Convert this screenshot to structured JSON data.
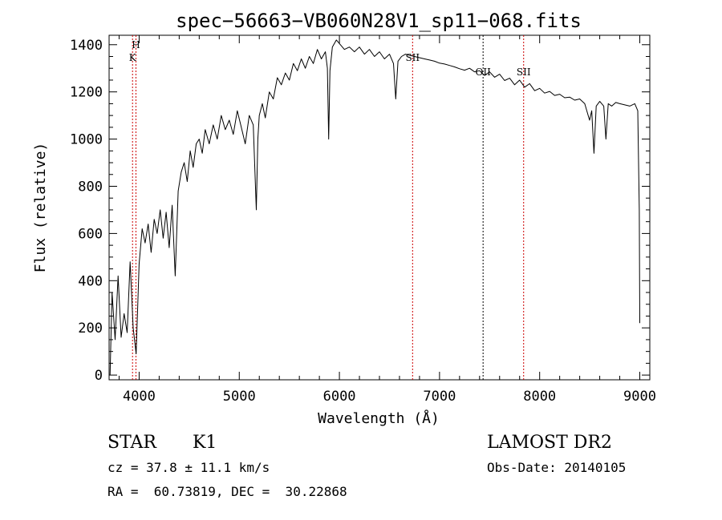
{
  "chart_data": {
    "type": "line",
    "title": "spec−56663−VB060N28V1_sp11−068.fits",
    "xlabel": "Wavelength (Å)",
    "ylabel": "Flux (relative)",
    "xlim": [
      3700,
      9100
    ],
    "ylim": [
      -20,
      1440
    ],
    "xticks": [
      4000,
      5000,
      6000,
      7000,
      8000,
      9000
    ],
    "xtick_labels": [
      "4000",
      "5000",
      "6000",
      "7000",
      "8000",
      "9000"
    ],
    "yticks": [
      0,
      200,
      400,
      600,
      800,
      1000,
      1200,
      1400
    ],
    "ytick_labels": [
      "0",
      "200",
      "400",
      "600",
      "800",
      "1000",
      "1200",
      "1400"
    ],
    "series": [
      {
        "name": "spectrum",
        "color": "#000000",
        "x": [
          3710,
          3730,
          3760,
          3790,
          3820,
          3850,
          3880,
          3910,
          3940,
          3970,
          4000,
          4030,
          4060,
          4090,
          4120,
          4150,
          4180,
          4210,
          4240,
          4270,
          4300,
          4330,
          4360,
          4390,
          4420,
          4450,
          4480,
          4510,
          4540,
          4570,
          4600,
          4630,
          4660,
          4700,
          4740,
          4780,
          4820,
          4860,
          4900,
          4940,
          4980,
          5020,
          5060,
          5100,
          5140,
          5170,
          5185,
          5200,
          5230,
          5260,
          5300,
          5340,
          5380,
          5420,
          5460,
          5500,
          5540,
          5580,
          5620,
          5660,
          5700,
          5740,
          5780,
          5820,
          5860,
          5880,
          5893,
          5906,
          5930,
          5970,
          6010,
          6050,
          6100,
          6150,
          6200,
          6250,
          6300,
          6350,
          6400,
          6450,
          6500,
          6540,
          6563,
          6585,
          6620,
          6660,
          6700,
          6750,
          6800,
          6850,
          6900,
          6950,
          7000,
          7050,
          7100,
          7150,
          7200,
          7250,
          7300,
          7350,
          7400,
          7450,
          7500,
          7550,
          7600,
          7650,
          7700,
          7750,
          7800,
          7850,
          7900,
          7950,
          8000,
          8050,
          8100,
          8150,
          8200,
          8250,
          8300,
          8350,
          8400,
          8450,
          8498,
          8520,
          8542,
          8565,
          8600,
          8640,
          8662,
          8685,
          8720,
          8760,
          8800,
          8850,
          8900,
          8950,
          8980,
          8995,
          9000
        ],
        "values": [
          0,
          350,
          150,
          420,
          160,
          260,
          180,
          480,
          200,
          90,
          470,
          620,
          560,
          640,
          520,
          660,
          600,
          700,
          580,
          690,
          540,
          720,
          420,
          780,
          860,
          900,
          820,
          950,
          880,
          980,
          1000,
          940,
          1040,
          980,
          1060,
          1000,
          1100,
          1040,
          1080,
          1020,
          1120,
          1050,
          980,
          1100,
          1060,
          700,
          1000,
          1100,
          1150,
          1090,
          1200,
          1170,
          1260,
          1230,
          1280,
          1250,
          1320,
          1290,
          1340,
          1300,
          1350,
          1320,
          1380,
          1340,
          1370,
          1300,
          1000,
          1290,
          1390,
          1420,
          1400,
          1380,
          1390,
          1370,
          1390,
          1360,
          1380,
          1350,
          1370,
          1340,
          1360,
          1320,
          1170,
          1330,
          1350,
          1360,
          1355,
          1350,
          1345,
          1340,
          1335,
          1330,
          1322,
          1318,
          1312,
          1306,
          1298,
          1292,
          1300,
          1285,
          1290,
          1270,
          1285,
          1262,
          1275,
          1248,
          1258,
          1230,
          1250,
          1220,
          1235,
          1205,
          1215,
          1195,
          1202,
          1185,
          1190,
          1175,
          1178,
          1165,
          1170,
          1150,
          1080,
          1120,
          940,
          1140,
          1160,
          1140,
          1000,
          1150,
          1140,
          1155,
          1150,
          1145,
          1140,
          1150,
          1120,
          700,
          220
        ]
      }
    ],
    "line_markers": [
      {
        "label": "H",
        "x": 3968,
        "label_row": 0,
        "color": "#cc0000"
      },
      {
        "label": "K",
        "x": 3934,
        "label_row": 1,
        "color": "#cc0000"
      },
      {
        "label": "SII",
        "x": 6731,
        "label_row": 1,
        "color": "#cc0000"
      },
      {
        "label": "OII",
        "x": 7435,
        "label_row": 2,
        "color": "#000000"
      },
      {
        "label": "SII",
        "x": 7840,
        "label_row": 2,
        "color": "#cc0000"
      }
    ]
  },
  "info": {
    "object_class": "STAR",
    "subclass": "K1",
    "survey": "LAMOST DR2",
    "redshift_line": "cz = 37.8 ± 11.1 km/s",
    "obs_date_line": "Obs-Date: 20140105",
    "coords_line": "RA =  60.73819, DEC =  30.22868"
  }
}
